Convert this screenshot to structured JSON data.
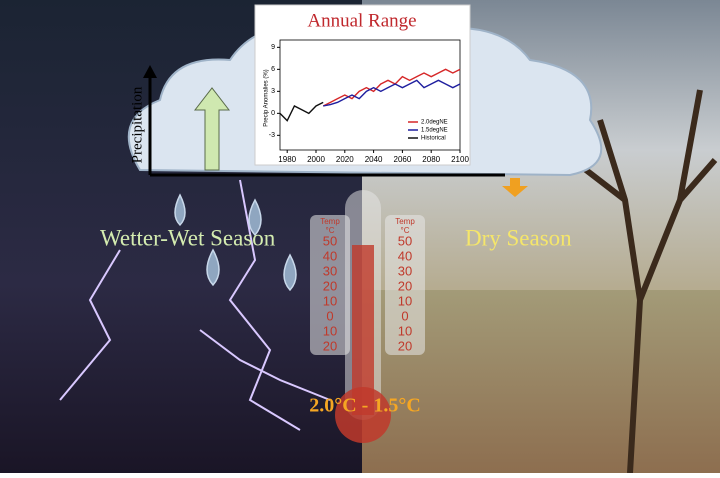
{
  "chart_data": {
    "type": "line",
    "title": "Annual Range",
    "y_label": "Precip Anomalies (%)",
    "xlim": [
      1975,
      2100
    ],
    "xticks": [
      1980,
      2000,
      2020,
      2040,
      2060,
      2080,
      2100
    ],
    "ylim": [
      -5,
      10
    ],
    "yticks": [
      -3,
      0,
      3,
      6,
      9
    ],
    "series": [
      {
        "name": "2.0degNE",
        "color": "#d62728",
        "x": [
          2005,
          2010,
          2015,
          2020,
          2025,
          2030,
          2035,
          2040,
          2045,
          2050,
          2055,
          2060,
          2065,
          2070,
          2075,
          2080,
          2085,
          2090,
          2095,
          2100
        ],
        "values": [
          1,
          1.5,
          2,
          2.5,
          2,
          3,
          3.5,
          3,
          4,
          4.5,
          4,
          5,
          4.5,
          5,
          5.5,
          5,
          5.5,
          6,
          5.5,
          6
        ]
      },
      {
        "name": "1.5degNE",
        "color": "#1f1f9f",
        "x": [
          2005,
          2010,
          2015,
          2020,
          2025,
          2030,
          2035,
          2040,
          2045,
          2050,
          2055,
          2060,
          2065,
          2070,
          2075,
          2080,
          2085,
          2090,
          2095,
          2100
        ],
        "values": [
          1,
          1.2,
          1.5,
          2,
          2.5,
          2,
          3,
          3.5,
          3,
          3.5,
          4,
          3.5,
          4,
          4.5,
          3.5,
          4,
          4.5,
          4,
          3.5,
          4
        ]
      },
      {
        "name": "Historical",
        "color": "#111111",
        "x": [
          1975,
          1980,
          1985,
          1990,
          1995,
          2000,
          2005
        ],
        "values": [
          0,
          -1,
          1,
          0.5,
          0,
          1,
          1.5
        ]
      }
    ]
  },
  "labels": {
    "precipitation": "Precipitation",
    "wet": "Wetter-Wet Season",
    "dry": "Dry Season",
    "warming": "2.0°C - 1.5°C"
  },
  "thermometer": {
    "title": "Temp",
    "unit": "°C",
    "scale": [
      "50",
      "40",
      "30",
      "20",
      "10",
      "0",
      "10",
      "20"
    ]
  }
}
